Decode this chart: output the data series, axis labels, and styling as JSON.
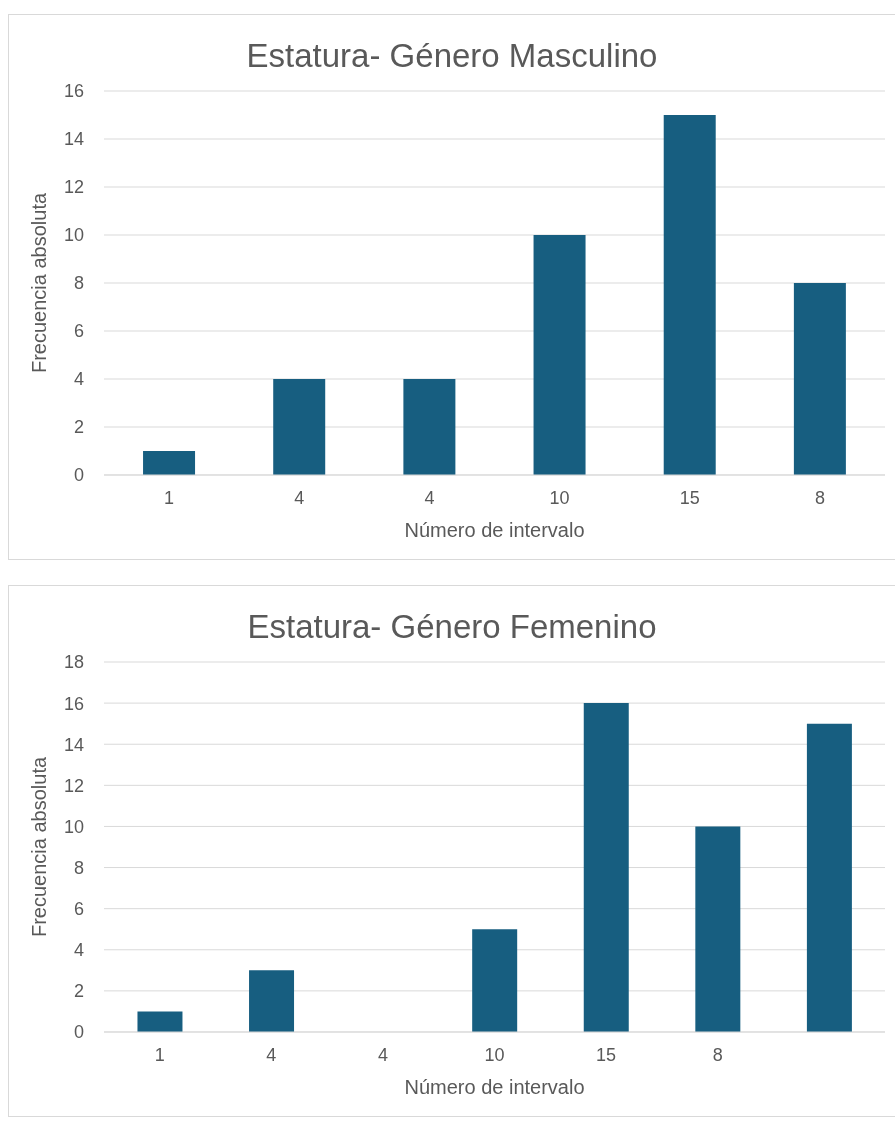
{
  "chart_data": [
    {
      "type": "bar",
      "title": "Estatura- Género Masculino",
      "xlabel": "Número de intervalo",
      "ylabel": "Frecuencia absoluta",
      "categories": [
        "1",
        "4",
        "4",
        "10",
        "15",
        "8"
      ],
      "values": [
        1,
        4,
        4,
        10,
        15,
        8
      ],
      "color": "#175e80",
      "ylim": [
        0,
        16
      ],
      "yticks": [
        0,
        2,
        4,
        6,
        8,
        10,
        12,
        14,
        16
      ],
      "grid": "y"
    },
    {
      "type": "bar",
      "title": "Estatura- Género Femenino",
      "xlabel": "Número de intervalo",
      "ylabel": "Frecuencia absoluta",
      "categories": [
        "1",
        "4",
        "4",
        "10",
        "15",
        "8",
        null
      ],
      "values": [
        1,
        3,
        0,
        5,
        16,
        10,
        15
      ],
      "color": "#175e80",
      "ylim": [
        0,
        18
      ],
      "yticks": [
        0,
        2,
        4,
        6,
        8,
        10,
        12,
        14,
        16,
        18
      ],
      "grid": "y"
    }
  ]
}
